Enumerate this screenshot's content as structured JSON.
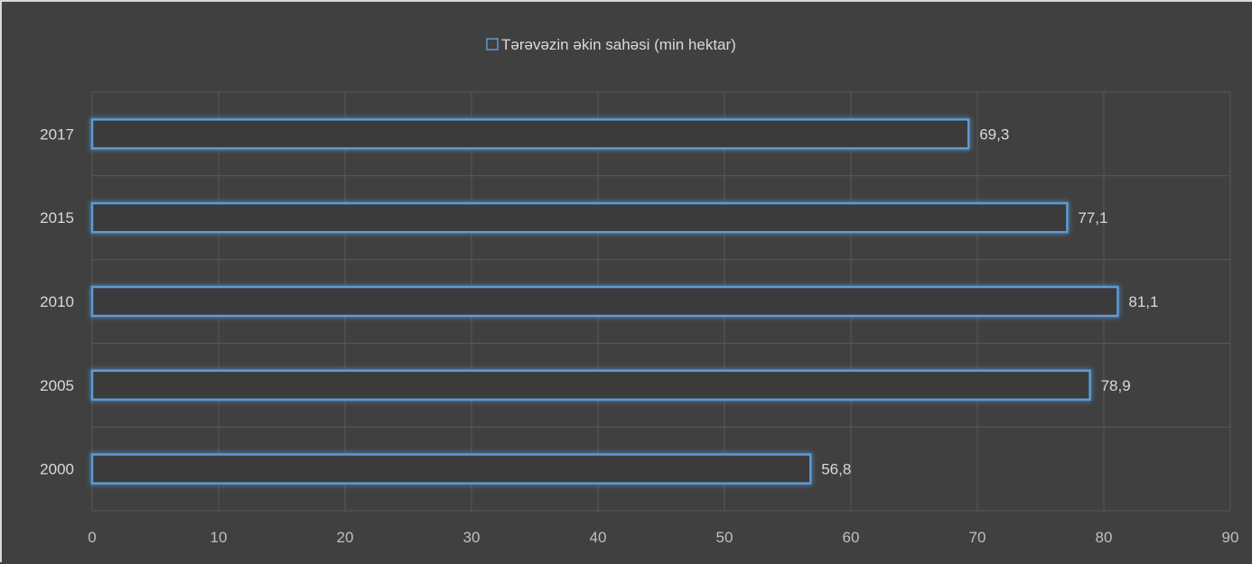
{
  "chart_data": {
    "type": "bar",
    "orientation": "horizontal",
    "title": "",
    "xlabel": "",
    "ylabel": "",
    "categories": [
      "2000",
      "2005",
      "2010",
      "2015",
      "2017"
    ],
    "series": [
      {
        "name": "Tərəvəzin əkin sahəsi (min hektar)",
        "values": [
          56.8,
          78.9,
          81.1,
          77.1,
          69.3
        ],
        "data_labels": [
          "56,8",
          "78,9",
          "81,1",
          "77,1",
          "69,3"
        ]
      }
    ],
    "xlim": [
      0,
      90
    ],
    "x_ticks": [
      "0",
      "10",
      "20",
      "30",
      "40",
      "50",
      "60",
      "70",
      "80",
      "90"
    ],
    "grid": true,
    "legend": "top-center"
  },
  "colors": {
    "background": "#404040",
    "bar_outline": "#5b9bd5",
    "bar_glow": "#2e75b6",
    "gridline": "#595959",
    "text": "#d9d9d9"
  }
}
